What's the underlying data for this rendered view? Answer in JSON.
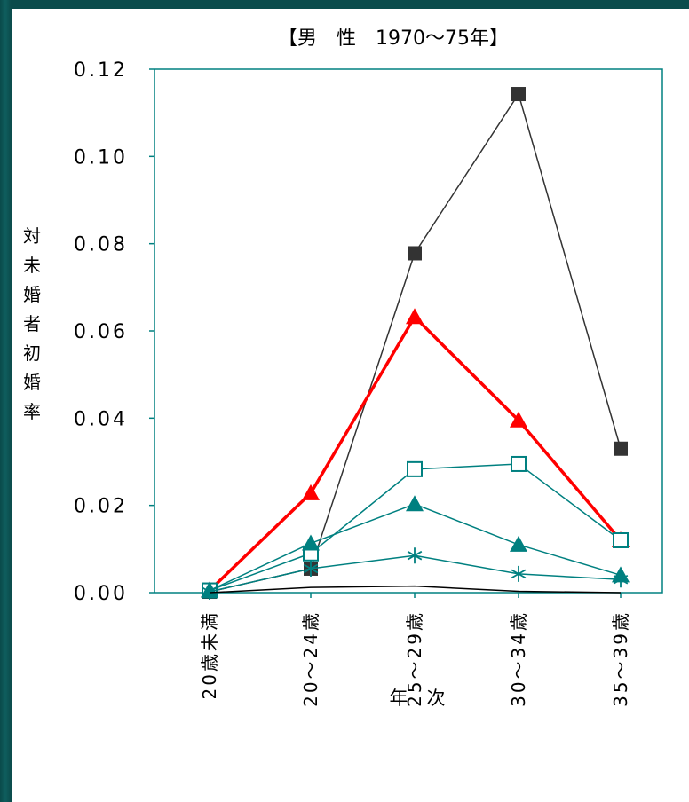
{
  "chart_data": {
    "type": "line",
    "title": "【男　性　1970～75年】",
    "xlabel": "年　次",
    "ylabel": "対未婚者初婚率",
    "categories": [
      "20歳未満",
      "20～24歳",
      "25～29歳",
      "30～34歳",
      "35～39歳"
    ],
    "ylim": [
      0,
      0.12
    ],
    "yticks": [
      "0.00",
      "0.02",
      "0.04",
      "0.06",
      "0.08",
      "0.10",
      "0.12"
    ],
    "grid": false,
    "legend": "none",
    "series": [
      {
        "marker": "filled-square",
        "color": "#333333",
        "width": 1.5,
        "values": [
          0.0002,
          0.0055,
          0.0778,
          0.1143,
          0.033
        ]
      },
      {
        "marker": "filled-triangle",
        "color": "#ff0000",
        "width": 3.5,
        "values": [
          0.0005,
          0.0228,
          0.0632,
          0.0395,
          0.012
        ]
      },
      {
        "marker": "open-square",
        "color": "#008080",
        "width": 1.5,
        "values": [
          0.0005,
          0.009,
          0.0283,
          0.0295,
          0.012
        ]
      },
      {
        "marker": "filled-triangle",
        "color": "#008080",
        "width": 1.5,
        "values": [
          0.0005,
          0.0113,
          0.0203,
          0.011,
          0.004
        ]
      },
      {
        "marker": "asterisk",
        "color": "#008080",
        "width": 1.5,
        "values": [
          0.0002,
          0.0055,
          0.0085,
          0.0043,
          0.003
        ]
      },
      {
        "marker": "none",
        "color": "#000000",
        "width": 1.5,
        "values": [
          0.0,
          0.0012,
          0.0015,
          0.0003,
          0.0
        ]
      }
    ]
  }
}
